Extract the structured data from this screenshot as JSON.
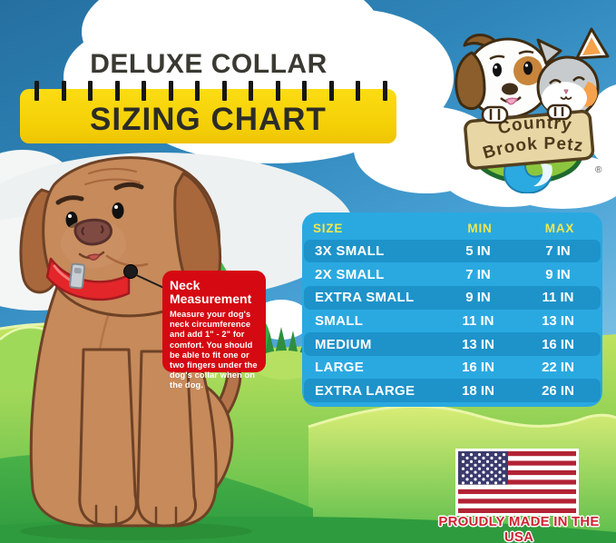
{
  "header": {
    "title": "DELUXE COLLAR",
    "subtitle": "SIZING CHART"
  },
  "logo": {
    "line1": "Country",
    "line2": "Brook Petz",
    "registered": "®"
  },
  "callout": {
    "title": "Neck Measurement",
    "body": "Measure your dog's neck circumference and add 1\" - 2\" for comfort. You should be able to fit one or two fingers under the dog's collar when on the dog."
  },
  "chart_data": {
    "type": "table",
    "title": "Deluxe Collar Sizing Chart",
    "columns": [
      "SIZE",
      "MIN",
      "MAX"
    ],
    "rows": [
      [
        "3X SMALL",
        "5 IN",
        "7 IN"
      ],
      [
        "2X SMALL",
        "7 IN",
        "9 IN"
      ],
      [
        "EXTRA SMALL",
        "9 IN",
        "11 IN"
      ],
      [
        "SMALL",
        "11 IN",
        "13 IN"
      ],
      [
        "MEDIUM",
        "13 IN",
        "16 IN"
      ],
      [
        "LARGE",
        "16 IN",
        "22 IN"
      ],
      [
        "EXTRA LARGE",
        "18 IN",
        "26 IN"
      ]
    ],
    "units": "inches"
  },
  "footer": {
    "made_in": "PROUDLY MADE IN THE USA"
  },
  "colors": {
    "table_blue": "#2AA9E1",
    "table_stripe": "#1D93CA",
    "table_header_yellow": "#F0E74C",
    "ruler_yellow": "#F4CF06",
    "callout_red": "#D50912",
    "usa_text_red": "#CF2332",
    "flag_red": "#B22234",
    "flag_blue": "#3C3B6E"
  }
}
